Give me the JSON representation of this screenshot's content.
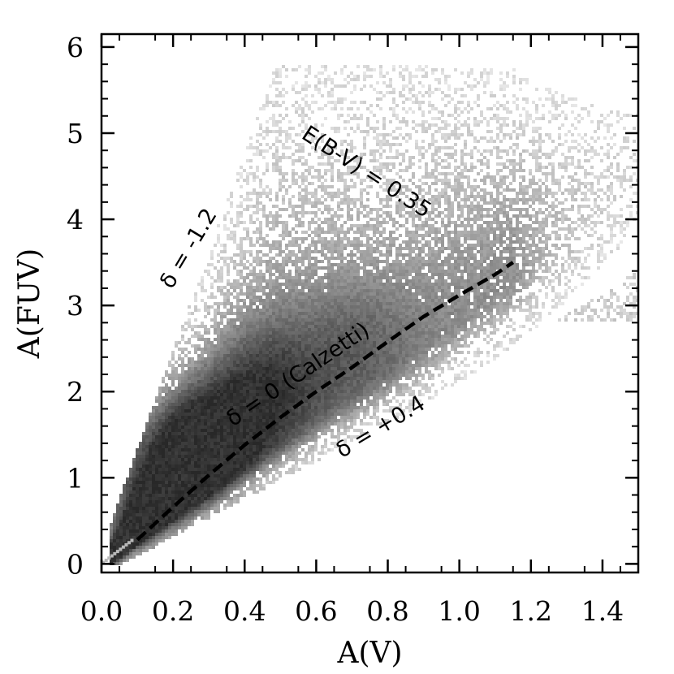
{
  "chart_data": {
    "type": "heatmap",
    "title": "",
    "xlabel": "A(V)",
    "ylabel": "A(FUV)",
    "xlim": [
      0.0,
      1.5
    ],
    "ylim": [
      -0.1,
      6.15
    ],
    "grid": false,
    "legend": "none",
    "x_ticks": [
      "0.0",
      "0.2",
      "0.4",
      "0.6",
      "0.8",
      "1.0",
      "1.2",
      "1.4"
    ],
    "x_tick_values": [
      0.0,
      0.2,
      0.4,
      0.6,
      0.8,
      1.0,
      1.2,
      1.4
    ],
    "y_ticks": [
      "0",
      "1",
      "2",
      "3",
      "4",
      "5",
      "6"
    ],
    "y_tick_values": [
      0,
      1,
      2,
      3,
      4,
      5,
      6
    ],
    "density_color": "#000000",
    "density_model": {
      "description": "2D histogram of attenuation pairs; density peaks near A(V)=0.25, A(FUV)=1.4",
      "cores": [
        {
          "x": 0.25,
          "y": 1.4,
          "weight": 1.0
        },
        {
          "x": 0.05,
          "y": 0.55,
          "weight": 0.55
        },
        {
          "x": 0.11,
          "y": 1.1,
          "weight": 0.45
        },
        {
          "x": 0.45,
          "y": 2.1,
          "weight": 0.55
        },
        {
          "x": 0.7,
          "y": 2.6,
          "weight": 0.3
        }
      ]
    },
    "series": [
      {
        "name": "δ = 0 (Calzetti)",
        "style": "dashed",
        "x": [
          0.1,
          0.2,
          0.3,
          0.4,
          0.5,
          0.6,
          0.7,
          0.8,
          0.9,
          1.0,
          1.1,
          1.15
        ],
        "y": [
          0.28,
          0.66,
          1.03,
          1.38,
          1.7,
          2.0,
          2.28,
          2.58,
          2.87,
          3.12,
          3.36,
          3.5
        ]
      }
    ],
    "annotations": [
      {
        "text": "E(B-V) = 0.35",
        "x": 0.73,
        "y": 4.48,
        "rotation": 33
      },
      {
        "text": "δ = -1.2",
        "x": 0.26,
        "y": 3.62,
        "rotation": -59
      },
      {
        "text": "δ = 0 (Calzetti)",
        "x": 0.56,
        "y": 2.13,
        "rotation": -34
      },
      {
        "text": "δ = +0.4",
        "x": 0.79,
        "y": 1.52,
        "rotation": -31
      }
    ]
  }
}
